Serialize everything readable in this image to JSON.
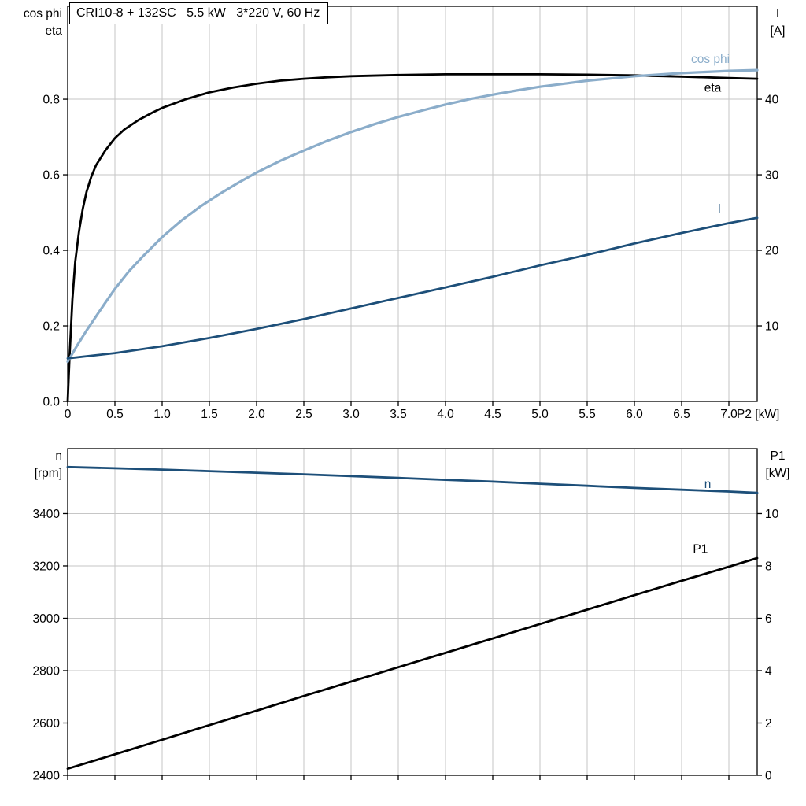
{
  "title_box": "CRI10-8 + 132SC   5.5 kW   3*220 V, 60 Hz",
  "colors": {
    "background": "#ffffff",
    "grid": "#c6c6c6",
    "axis": "#000000",
    "dark_blue": "#1d4f79",
    "light_blue": "#8badca",
    "black": "#000000"
  },
  "chart_data": [
    {
      "type": "line",
      "name": "motor-performance-chart",
      "title": "CRI10-8 + 132SC   5.5 kW   3*220 V, 60 Hz",
      "x_label": "P2 [kW]",
      "x_range": [
        0,
        7.3
      ],
      "x_ticks": [
        0,
        0.5,
        1.0,
        1.5,
        2.0,
        2.5,
        3.0,
        3.5,
        4.0,
        4.5,
        5.0,
        5.5,
        6.0,
        6.5,
        7.0
      ],
      "x_tick_labels": [
        "0",
        "0.5",
        "1.0",
        "1.5",
        "2.0",
        "2.5",
        "3.0",
        "3.5",
        "4.0",
        "4.5",
        "5.0",
        "5.5",
        "6.0",
        "6.5",
        "7.0"
      ],
      "grid": true,
      "y_left": {
        "title_lines": [
          "cos phi",
          "eta"
        ],
        "range": [
          0,
          1.046
        ],
        "ticks": [
          0.0,
          0.2,
          0.4,
          0.6,
          0.8
        ],
        "tick_labels": [
          "0.0",
          "0.2",
          "0.4",
          "0.6",
          "0.8"
        ]
      },
      "y_right": {
        "title_lines": [
          "I",
          "[A]"
        ],
        "range": [
          0,
          52.3
        ],
        "ticks": [
          10,
          20,
          30,
          40
        ],
        "tick_labels": [
          "10",
          "20",
          "30",
          "40"
        ]
      },
      "series": [
        {
          "name": "eta",
          "label": "eta",
          "axis": "left",
          "color": "#000000",
          "width": 2.8,
          "label_at": [
            6.74,
            0.83
          ],
          "points": [
            [
              0,
              0
            ],
            [
              0.02,
              0.12
            ],
            [
              0.05,
              0.27
            ],
            [
              0.08,
              0.37
            ],
            [
              0.12,
              0.45
            ],
            [
              0.16,
              0.51
            ],
            [
              0.2,
              0.555
            ],
            [
              0.25,
              0.595
            ],
            [
              0.3,
              0.625
            ],
            [
              0.4,
              0.665
            ],
            [
              0.5,
              0.697
            ],
            [
              0.6,
              0.72
            ],
            [
              0.75,
              0.745
            ],
            [
              0.9,
              0.765
            ],
            [
              1.0,
              0.777
            ],
            [
              1.25,
              0.8
            ],
            [
              1.5,
              0.818
            ],
            [
              1.75,
              0.831
            ],
            [
              2.0,
              0.841
            ],
            [
              2.25,
              0.849
            ],
            [
              2.5,
              0.854
            ],
            [
              2.75,
              0.858
            ],
            [
              3.0,
              0.861
            ],
            [
              3.5,
              0.864
            ],
            [
              4.0,
              0.866
            ],
            [
              4.5,
              0.866
            ],
            [
              5.0,
              0.866
            ],
            [
              5.5,
              0.865
            ],
            [
              6.0,
              0.863
            ],
            [
              6.5,
              0.86
            ],
            [
              7.0,
              0.856
            ],
            [
              7.3,
              0.854
            ]
          ]
        },
        {
          "name": "cos-phi",
          "label": "cos phi",
          "axis": "left",
          "color": "#8badca",
          "width": 3.2,
          "label_at": [
            6.6,
            0.906
          ],
          "points": [
            [
              0,
              0.105
            ],
            [
              0.1,
              0.148
            ],
            [
              0.2,
              0.188
            ],
            [
              0.3,
              0.225
            ],
            [
              0.4,
              0.262
            ],
            [
              0.5,
              0.298
            ],
            [
              0.65,
              0.345
            ],
            [
              0.8,
              0.385
            ],
            [
              1.0,
              0.435
            ],
            [
              1.2,
              0.478
            ],
            [
              1.4,
              0.515
            ],
            [
              1.6,
              0.548
            ],
            [
              1.8,
              0.578
            ],
            [
              2.0,
              0.606
            ],
            [
              2.25,
              0.637
            ],
            [
              2.5,
              0.664
            ],
            [
              2.75,
              0.69
            ],
            [
              3.0,
              0.713
            ],
            [
              3.25,
              0.734
            ],
            [
              3.5,
              0.753
            ],
            [
              3.75,
              0.77
            ],
            [
              4.0,
              0.786
            ],
            [
              4.25,
              0.8
            ],
            [
              4.5,
              0.812
            ],
            [
              4.75,
              0.823
            ],
            [
              5.0,
              0.833
            ],
            [
              5.25,
              0.841
            ],
            [
              5.5,
              0.849
            ],
            [
              5.75,
              0.855
            ],
            [
              6.0,
              0.861
            ],
            [
              6.25,
              0.865
            ],
            [
              6.5,
              0.869
            ],
            [
              6.75,
              0.872
            ],
            [
              7.0,
              0.875
            ],
            [
              7.3,
              0.877
            ]
          ]
        },
        {
          "name": "current",
          "label": "I",
          "axis": "right",
          "color": "#1d4f79",
          "width": 2.8,
          "label_at": [
            6.88,
            25.5
          ],
          "points": [
            [
              0,
              5.7
            ],
            [
              0.5,
              6.4
            ],
            [
              1.0,
              7.3
            ],
            [
              1.5,
              8.4
            ],
            [
              2.0,
              9.6
            ],
            [
              2.5,
              10.9
            ],
            [
              3.0,
              12.3
            ],
            [
              3.5,
              13.7
            ],
            [
              4.0,
              15.1
            ],
            [
              4.5,
              16.5
            ],
            [
              5.0,
              18.0
            ],
            [
              5.5,
              19.4
            ],
            [
              6.0,
              20.9
            ],
            [
              6.5,
              22.3
            ],
            [
              7.0,
              23.6
            ],
            [
              7.3,
              24.3
            ]
          ]
        }
      ]
    },
    {
      "type": "line",
      "name": "speed-power-chart",
      "title": "",
      "x_label": "",
      "x_range": [
        0,
        7.3
      ],
      "x_ticks": [
        0,
        0.5,
        1.0,
        1.5,
        2.0,
        2.5,
        3.0,
        3.5,
        4.0,
        4.5,
        5.0,
        5.5,
        6.0,
        6.5,
        7.0
      ],
      "x_tick_labels": null,
      "grid": true,
      "y_left": {
        "title_lines": [
          "n",
          "[rpm]"
        ],
        "range": [
          2400,
          3648
        ],
        "ticks": [
          2400,
          2600,
          2800,
          3000,
          3200,
          3400
        ],
        "tick_labels": [
          "2400",
          "2600",
          "2800",
          "3000",
          "3200",
          "3400"
        ]
      },
      "y_right": {
        "title_lines": [
          "P1",
          "[kW]"
        ],
        "range": [
          0,
          12.48
        ],
        "ticks": [
          0,
          2,
          4,
          6,
          8,
          10
        ],
        "tick_labels": [
          "0",
          "2",
          "4",
          "6",
          "8",
          "10"
        ]
      },
      "series": [
        {
          "name": "speed",
          "label": "n",
          "axis": "left",
          "color": "#1d4f79",
          "width": 2.8,
          "label_at": [
            6.74,
            3512
          ],
          "points": [
            [
              0,
              3578
            ],
            [
              0.5,
              3573
            ],
            [
              1.0,
              3568
            ],
            [
              1.5,
              3562
            ],
            [
              2.0,
              3556
            ],
            [
              2.5,
              3550
            ],
            [
              3.0,
              3543
            ],
            [
              3.5,
              3536
            ],
            [
              4.0,
              3529
            ],
            [
              4.5,
              3522
            ],
            [
              5.0,
              3514
            ],
            [
              5.5,
              3506
            ],
            [
              6.0,
              3498
            ],
            [
              6.5,
              3491
            ],
            [
              7.0,
              3484
            ],
            [
              7.3,
              3479
            ]
          ]
        },
        {
          "name": "input-power",
          "label": "P1",
          "axis": "right",
          "color": "#000000",
          "width": 2.8,
          "label_at": [
            6.62,
            8.65
          ],
          "points": [
            [
              0,
              0.25
            ],
            [
              0.5,
              0.8
            ],
            [
              1.0,
              1.36
            ],
            [
              1.5,
              1.92
            ],
            [
              2.0,
              2.47
            ],
            [
              2.5,
              3.03
            ],
            [
              3.0,
              3.58
            ],
            [
              3.5,
              4.13
            ],
            [
              4.0,
              4.68
            ],
            [
              4.5,
              5.23
            ],
            [
              5.0,
              5.78
            ],
            [
              5.5,
              6.33
            ],
            [
              6.0,
              6.88
            ],
            [
              6.5,
              7.43
            ],
            [
              7.0,
              7.97
            ],
            [
              7.3,
              8.3
            ]
          ]
        }
      ]
    }
  ]
}
